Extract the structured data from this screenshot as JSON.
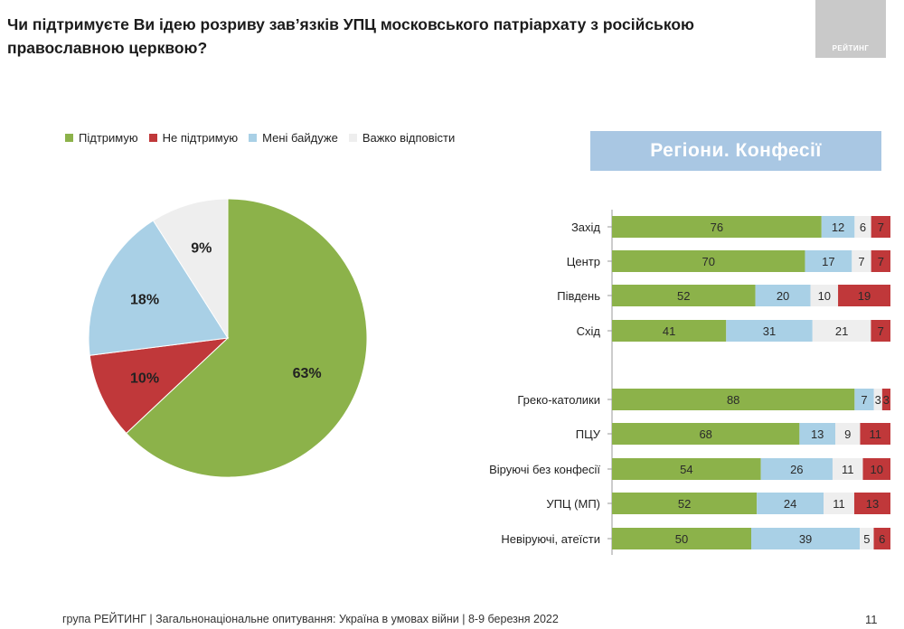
{
  "title": "Чи підтримуєте Ви ідею розриву зав’язків УПЦ московського патріархату з російською православною церквою?",
  "logo_text": "РЕЙТИНГ",
  "banner": "Регіони. Конфесії",
  "footer": "група РЕЙТИНГ | Загальнонаціональне опитування: Україна в умовах війни | 8-9 березня 2022",
  "page_number": "11",
  "colors": {
    "support": "#8cb24a",
    "not_support": "#c0383a",
    "indifferent": "#a9d0e6",
    "hard": "#eeeeee",
    "banner": "#a9c7e3"
  },
  "legend": [
    "Підтримую",
    "Не підтримую",
    "Мені байдуже",
    "Важко відповісти"
  ],
  "chart_data": [
    {
      "type": "pie",
      "labels": [
        "Підтримую",
        "Не підтримую",
        "Мені байдуже",
        "Важко відповісти"
      ],
      "values": [
        63,
        10,
        18,
        9
      ],
      "data_labels": [
        "63%",
        "10%",
        "18%",
        "9%"
      ]
    },
    {
      "type": "bar",
      "stacked": true,
      "orientation": "horizontal",
      "categories": [
        "Захід",
        "Центр",
        "Південь",
        "Схід",
        "Греко-католики",
        "ПЦУ",
        "Віруючі без конфесії",
        "УПЦ (МП)",
        "Невіруючі, атеїсти"
      ],
      "groups": [
        [
          "Захід",
          "Центр",
          "Південь",
          "Схід"
        ],
        [
          "Греко-католики",
          "ПЦУ",
          "Віруючі без конфесії",
          "УПЦ (МП)",
          "Невіруючі, атеїсти"
        ]
      ],
      "series": [
        {
          "name": "Підтримую",
          "values": [
            76,
            70,
            52,
            41,
            88,
            68,
            54,
            52,
            50
          ]
        },
        {
          "name": "Мені байдуже",
          "values": [
            12,
            17,
            20,
            31,
            7,
            13,
            26,
            24,
            39
          ]
        },
        {
          "name": "Важко відповісти",
          "values": [
            6,
            7,
            10,
            21,
            3,
            9,
            11,
            11,
            5
          ]
        },
        {
          "name": "Не підтримую",
          "values": [
            7,
            7,
            19,
            7,
            3,
            11,
            10,
            13,
            6
          ]
        }
      ]
    }
  ]
}
